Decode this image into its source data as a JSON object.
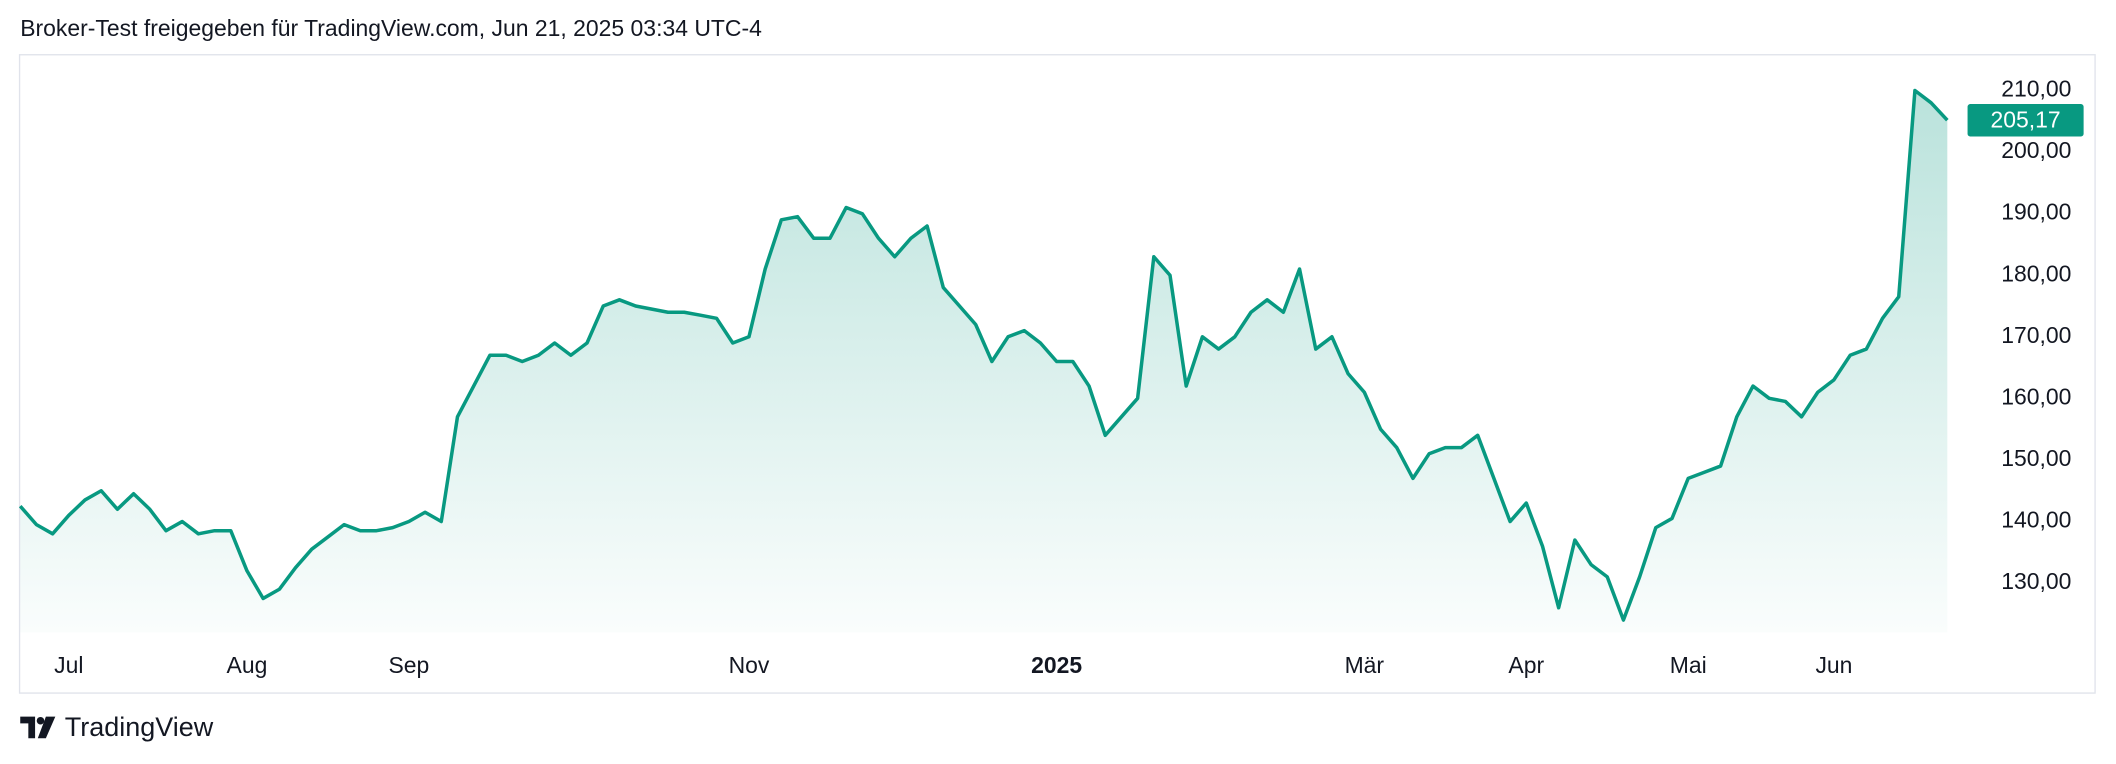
{
  "chart_data": {
    "type": "area",
    "title": "Broker-Test freigegeben für TradingView.com, Jun 21, 2025 03:34 UTC-4",
    "brand": "TradingView",
    "color": "#089981",
    "grid": false,
    "categories": [
      null,
      null,
      null,
      "Jul",
      null,
      null,
      null,
      null,
      null,
      null,
      null,
      null,
      null,
      null,
      "Aug",
      null,
      null,
      null,
      null,
      null,
      null,
      null,
      null,
      null,
      "Sep",
      null,
      null,
      null,
      null,
      null,
      null,
      null,
      null,
      null,
      null,
      null,
      null,
      null,
      null,
      null,
      null,
      null,
      null,
      null,
      null,
      "Nov",
      null,
      null,
      null,
      null,
      null,
      null,
      null,
      null,
      null,
      null,
      null,
      null,
      null,
      null,
      null,
      null,
      null,
      null,
      "2025",
      null,
      null,
      null,
      null,
      null,
      null,
      null,
      null,
      null,
      null,
      null,
      null,
      null,
      null,
      null,
      null,
      null,
      null,
      "Mär",
      null,
      null,
      null,
      null,
      null,
      null,
      null,
      null,
      null,
      "Apr",
      null,
      null,
      null,
      null,
      null,
      null,
      null,
      null,
      null,
      "Mai",
      null,
      null,
      null,
      null,
      null,
      null,
      null,
      null,
      "Jun",
      null,
      null,
      null,
      null,
      null,
      null,
      null
    ],
    "values": [
      142.5,
      139.5,
      138,
      141,
      143.5,
      145,
      142,
      144.5,
      142,
      138.5,
      140,
      138,
      138.5,
      138.5,
      132,
      127.5,
      129,
      132.5,
      135.5,
      137.5,
      139.5,
      138.5,
      138.5,
      139,
      140,
      141.5,
      140,
      157,
      162,
      167,
      167,
      166,
      167,
      169,
      167,
      169,
      175,
      176,
      175,
      174.5,
      174,
      174,
      173.5,
      173,
      169,
      170,
      181,
      189,
      189.5,
      186,
      186,
      191,
      190,
      186,
      183,
      186,
      188,
      178,
      175,
      172,
      166,
      170,
      171,
      169,
      166,
      166,
      162,
      154,
      157,
      160,
      183,
      180,
      162,
      170,
      168,
      170,
      174,
      176,
      174,
      181,
      168,
      170,
      164,
      161,
      155,
      152,
      147,
      151,
      152,
      152,
      154,
      147,
      140,
      143,
      136,
      126,
      137,
      133,
      131,
      124,
      131,
      139,
      140.5,
      147,
      148,
      149,
      157,
      162,
      160,
      159.5,
      157,
      161,
      163,
      167,
      168,
      173,
      176.5,
      210,
      208,
      205.17
    ],
    "value_labels": [
      null,
      null,
      null,
      null,
      null,
      null,
      null,
      null,
      null,
      null,
      null,
      null,
      null,
      null,
      null,
      null,
      null,
      null,
      null,
      null,
      null,
      null,
      null,
      null,
      null,
      null,
      null,
      null,
      null,
      null,
      null,
      null,
      null,
      null,
      null,
      null,
      null,
      null,
      null,
      null,
      null,
      null,
      null,
      null,
      null,
      null,
      null,
      null,
      null,
      null,
      null,
      null,
      null,
      null,
      null,
      null,
      null,
      null,
      null,
      null,
      null,
      null,
      null,
      null,
      null,
      null,
      null,
      null,
      null,
      null,
      null,
      null,
      null,
      null,
      null,
      null,
      null,
      null,
      null,
      null,
      null,
      null,
      null,
      null,
      null,
      null,
      null,
      null,
      null,
      null,
      null,
      null,
      null,
      null,
      null,
      null,
      null,
      null,
      null,
      null,
      null,
      null,
      null,
      null,
      null,
      null,
      null,
      null,
      null,
      null,
      null,
      null,
      null,
      null,
      null,
      null,
      null,
      null,
      null,
      "205,17"
    ],
    "ylim": [
      122,
      216
    ],
    "yticks": [
      {
        "value": 130,
        "label": "130,00"
      },
      {
        "value": 140,
        "label": "140,00"
      },
      {
        "value": 150,
        "label": "150,00"
      },
      {
        "value": 160,
        "label": "160,00"
      },
      {
        "value": 170,
        "label": "170,00"
      },
      {
        "value": 180,
        "label": "180,00"
      },
      {
        "value": 190,
        "label": "190,00"
      },
      {
        "value": 200,
        "label": "200,00"
      },
      {
        "value": 210,
        "label": "210,00"
      }
    ]
  }
}
